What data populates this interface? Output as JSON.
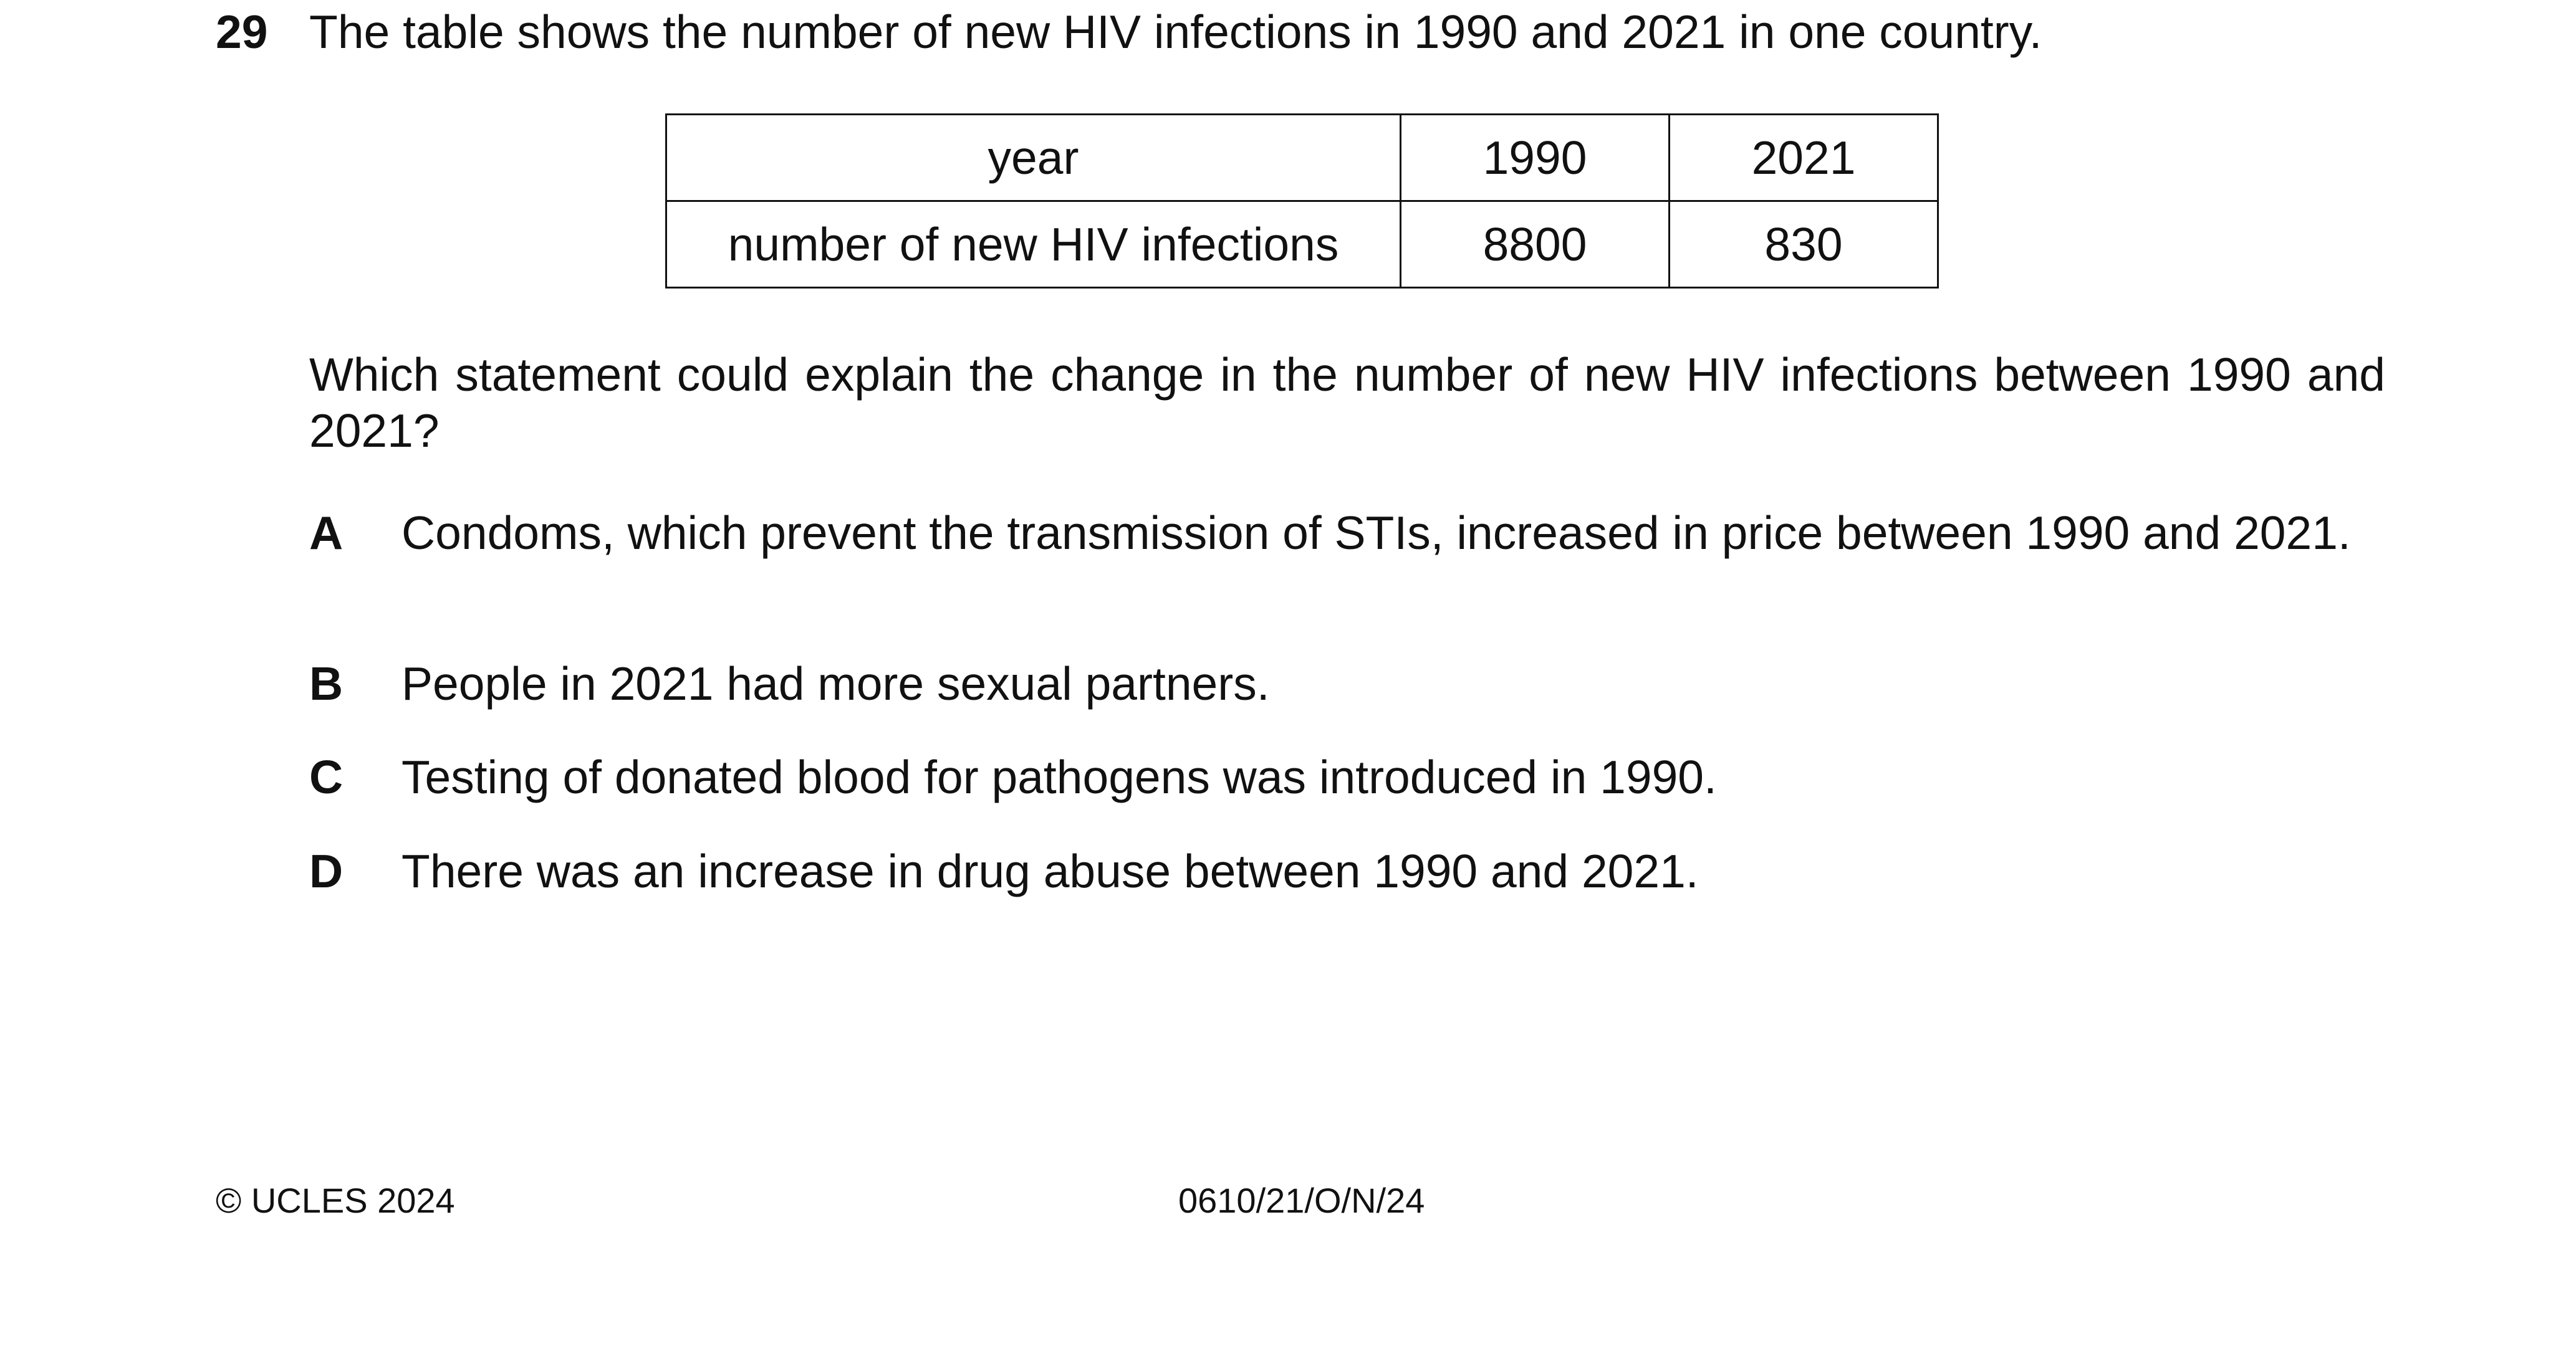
{
  "question": {
    "number": "29",
    "stem": "The table shows the number of new HIV infections in 1990 and 2021 in one country.",
    "prompt": "Which statement could explain the change in the number of new HIV infections between 1990 and 2021?"
  },
  "table": {
    "rows": [
      [
        "year",
        "1990",
        "2021"
      ],
      [
        "number of new HIV infections",
        "8800",
        "830"
      ]
    ]
  },
  "options": [
    {
      "letter": "A",
      "text": "Condoms, which prevent the transmission of STIs, increased in price between 1990 and 2021."
    },
    {
      "letter": "B",
      "text": "People in 2021 had more sexual partners."
    },
    {
      "letter": "C",
      "text": "Testing of donated blood for pathogens was introduced in 1990."
    },
    {
      "letter": "D",
      "text": "There was an increase in drug abuse between 1990 and 2021."
    }
  ],
  "footer": {
    "copyright": "© UCLES 2024",
    "code": "0610/21/O/N/24"
  }
}
